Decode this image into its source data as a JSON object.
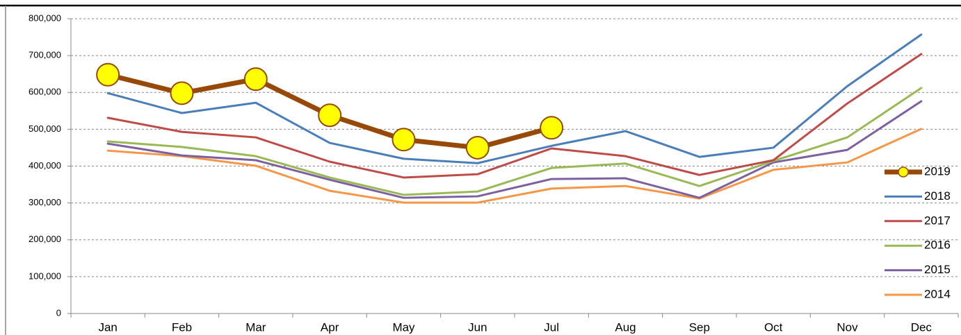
{
  "chart_data": {
    "type": "line",
    "categories": [
      "Jan",
      "Feb",
      "Mar",
      "Apr",
      "May",
      "Jun",
      "Jul",
      "Aug",
      "Sep",
      "Oct",
      "Nov",
      "Dec"
    ],
    "series": [
      {
        "name": "2019",
        "color": "#984807",
        "line_width": 7,
        "marker_color": "#ffff00",
        "values": [
          648000,
          598000,
          636000,
          538000,
          472000,
          450000,
          504000,
          null,
          null,
          null,
          null,
          null
        ]
      },
      {
        "name": "2018",
        "color": "#4a7ebb",
        "line_width": 3,
        "values": [
          598000,
          544000,
          572000,
          463000,
          420000,
          408000,
          455000,
          495000,
          425000,
          450000,
          617000,
          757000
        ]
      },
      {
        "name": "2017",
        "color": "#be4b48",
        "line_width": 3,
        "values": [
          531000,
          493000,
          478000,
          412000,
          369000,
          378000,
          448000,
          427000,
          376000,
          416000,
          570000,
          704000
        ]
      },
      {
        "name": "2016",
        "color": "#98b954",
        "line_width": 3,
        "values": [
          467000,
          452000,
          427000,
          369000,
          322000,
          331000,
          395000,
          407000,
          346000,
          414000,
          478000,
          612000
        ]
      },
      {
        "name": "2015",
        "color": "#7d60a0",
        "line_width": 3,
        "values": [
          461000,
          429000,
          416000,
          363000,
          314000,
          318000,
          365000,
          367000,
          314000,
          410000,
          444000,
          576000
        ]
      },
      {
        "name": "2014",
        "color": "#f79646",
        "line_width": 3,
        "values": [
          442000,
          427000,
          401000,
          333000,
          301000,
          301000,
          339000,
          346000,
          312000,
          390000,
          410000,
          501000
        ]
      }
    ],
    "ylim": [
      0,
      800000
    ],
    "yticks": [
      0,
      {
        "value": 100000,
        "label": "100,000"
      },
      {
        "value": 200000,
        "label": "200,000"
      },
      {
        "value": 300000,
        "label": "300,000"
      },
      {
        "value": 400000,
        "label": "400,000"
      },
      {
        "value": 500000,
        "label": "500,000"
      },
      {
        "value": 600000,
        "label": "600,000"
      },
      {
        "value": 700000,
        "label": "700,000"
      },
      {
        "value": 800000,
        "label": "800,000"
      }
    ],
    "grid": true,
    "legend": "right"
  }
}
